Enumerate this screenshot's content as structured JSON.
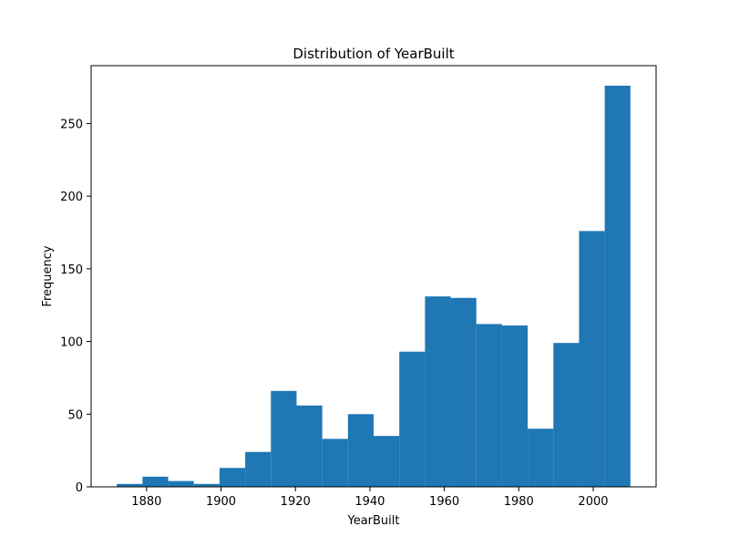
{
  "chart_data": {
    "type": "bar",
    "title": "Distribution of YearBuilt",
    "xlabel": "YearBuilt",
    "ylabel": "Frequency",
    "bar_color": "#1f77b4",
    "bin_edges": [
      1872,
      1878.9,
      1885.8,
      1892.7,
      1899.6,
      1906.5,
      1913.4,
      1920.3,
      1927.2,
      1934.1,
      1941,
      1947.9,
      1954.8,
      1961.7,
      1968.6,
      1975.5,
      1982.4,
      1989.3,
      1996.2,
      2003.1,
      2010
    ],
    "values": [
      2,
      7,
      4,
      2,
      13,
      24,
      66,
      56,
      33,
      50,
      35,
      93,
      131,
      130,
      112,
      111,
      40,
      99,
      176,
      276
    ],
    "xlim": [
      1865.1,
      2016.9
    ],
    "ylim": [
      0,
      289.8
    ],
    "x_ticks": [
      1880,
      1900,
      1920,
      1940,
      1960,
      1980,
      2000
    ],
    "y_ticks": [
      0,
      50,
      100,
      150,
      200,
      250
    ],
    "grid": false,
    "legend": "none"
  }
}
